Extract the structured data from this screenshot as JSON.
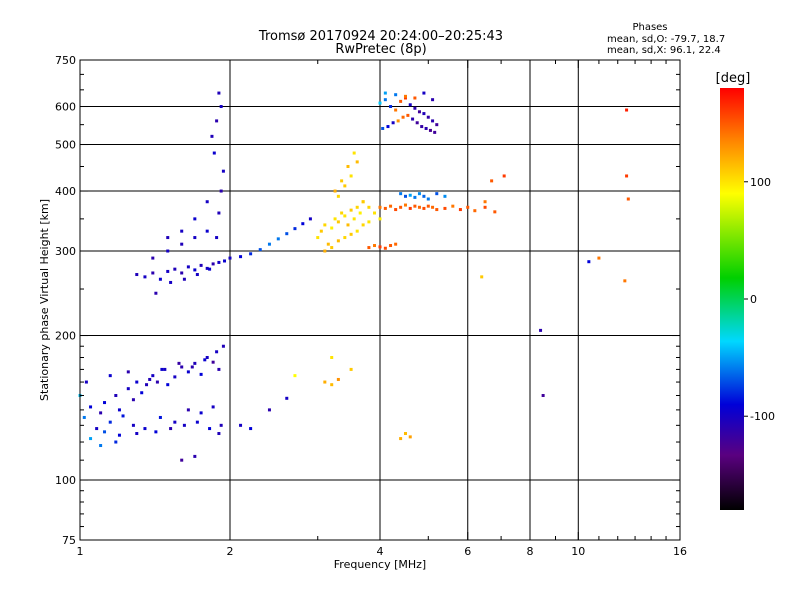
{
  "chart_data": {
    "type": "scatter",
    "title": "Tromsø 20170924 20:24:00–20:25:43",
    "subtitle": "RwPretec (8p)",
    "stats": {
      "title": "Phases",
      "line1": "mean, sd,O: -79.7, 18.7",
      "line2": "mean, sd,X:  96.1, 22.4"
    },
    "xlabel": "Frequency [MHz]",
    "ylabel": "Stationary phase Virtual Height [km]",
    "x_scale": "log",
    "y_scale": "log",
    "xlim": [
      1,
      16
    ],
    "ylim": [
      75,
      750
    ],
    "x_ticks": [
      1,
      2,
      4,
      6,
      8,
      10,
      16
    ],
    "y_ticks": [
      75,
      100,
      200,
      300,
      400,
      500,
      600,
      750
    ],
    "x_grid": [
      2,
      4,
      6,
      8,
      10
    ],
    "y_grid": [
      100,
      200,
      300,
      400,
      500,
      600
    ],
    "grid": true,
    "colorbar": {
      "label": "[deg]",
      "range": [
        -180,
        180
      ],
      "ticks": [
        100,
        0,
        -100
      ]
    },
    "series": [
      {
        "x": [
          1.0,
          1.02,
          1.05,
          1.08,
          1.1,
          1.12,
          1.15,
          1.18,
          1.2,
          1.22,
          1.25,
          1.28,
          1.3,
          1.33,
          1.36,
          1.4,
          1.43,
          1.46,
          1.5,
          1.55,
          1.6,
          1.65,
          1.7,
          1.75,
          1.8,
          1.85,
          1.9,
          1.05,
          1.12,
          1.2,
          1.28,
          1.35,
          1.45,
          1.55,
          1.65,
          1.75,
          1.85,
          1.92,
          1.1,
          1.18,
          1.3,
          1.42,
          1.52,
          1.62,
          1.72,
          1.82,
          1.9,
          1.03,
          1.15,
          1.25,
          1.38,
          1.48,
          1.58,
          1.68,
          1.78,
          1.88,
          1.94
        ],
        "y": [
          150,
          135,
          142,
          128,
          138,
          145,
          132,
          150,
          140,
          136,
          155,
          147,
          160,
          152,
          158,
          165,
          160,
          170,
          158,
          164,
          172,
          168,
          175,
          166,
          180,
          176,
          170,
          122,
          126,
          124,
          130,
          128,
          135,
          132,
          140,
          138,
          142,
          130,
          118,
          120,
          125,
          126,
          128,
          130,
          132,
          128,
          125,
          160,
          165,
          168,
          162,
          170,
          175,
          172,
          178,
          185,
          190
        ],
        "phase": [
          -40,
          -60,
          -90,
          -100,
          -110,
          -90,
          -80,
          -105,
          -95,
          -85,
          -100,
          -110,
          -95,
          -90,
          -105,
          -100,
          -110,
          -95,
          -90,
          -100,
          -110,
          -95,
          -105,
          -90,
          -100,
          -120,
          -110,
          -50,
          -70,
          -90,
          -100,
          -95,
          -85,
          -100,
          -110,
          -95,
          -100,
          -105,
          -60,
          -80,
          -100,
          -90,
          -110,
          -100,
          -95,
          -90,
          -105,
          -100,
          -95,
          -110,
          -105,
          -100,
          -115,
          -110,
          -95,
          -100,
          -105
        ]
      },
      {
        "x": [
          1.3,
          1.35,
          1.4,
          1.45,
          1.5,
          1.55,
          1.6,
          1.65,
          1.7,
          1.75,
          1.8,
          1.85,
          1.9,
          1.95,
          2.0,
          2.1,
          2.2,
          2.3,
          2.4,
          2.5,
          2.6,
          2.7,
          2.8,
          2.9,
          1.4,
          1.5,
          1.6,
          1.7,
          1.8,
          1.42,
          1.52,
          1.62,
          1.72,
          1.82,
          1.88,
          1.9,
          1.92,
          1.94,
          1.86,
          1.84,
          1.88,
          1.92,
          1.9,
          1.8,
          1.7,
          1.6,
          1.5
        ],
        "y": [
          268,
          265,
          270,
          262,
          272,
          275,
          270,
          278,
          274,
          280,
          276,
          282,
          284,
          286,
          290,
          292,
          296,
          302,
          310,
          318,
          326,
          334,
          342,
          350,
          290,
          300,
          310,
          320,
          330,
          245,
          258,
          262,
          268,
          275,
          320,
          360,
          400,
          440,
          480,
          520,
          560,
          600,
          640,
          380,
          350,
          330,
          320
        ],
        "phase": [
          -105,
          -100,
          -110,
          -95,
          -100,
          -105,
          -110,
          -100,
          -95,
          -105,
          -100,
          -110,
          -100,
          -95,
          -100,
          -90,
          -80,
          -70,
          -60,
          -60,
          -70,
          -80,
          -90,
          -100,
          -110,
          -100,
          -105,
          -100,
          -95,
          -110,
          -100,
          -105,
          -100,
          -95,
          -100,
          -105,
          -110,
          -100,
          -95,
          -105,
          -110,
          -100,
          -105,
          -100,
          -95,
          -100,
          -105
        ]
      },
      {
        "x": [
          3.0,
          3.05,
          3.1,
          3.15,
          3.2,
          3.25,
          3.3,
          3.35,
          3.4,
          3.45,
          3.5,
          3.55,
          3.6,
          3.65,
          3.7,
          3.1,
          3.2,
          3.3,
          3.4,
          3.5,
          3.6,
          3.7,
          3.8,
          3.25,
          3.35,
          3.45,
          3.55,
          3.3,
          3.4,
          3.5,
          3.6,
          3.7,
          3.8,
          3.9,
          4.0
        ],
        "y": [
          320,
          330,
          340,
          310,
          335,
          350,
          345,
          360,
          355,
          340,
          365,
          350,
          370,
          360,
          380,
          300,
          305,
          315,
          320,
          325,
          330,
          340,
          345,
          400,
          420,
          450,
          480,
          390,
          410,
          430,
          460,
          380,
          370,
          360,
          350
        ],
        "phase": [
          100,
          110,
          105,
          115,
          95,
          100,
          110,
          105,
          100,
          115,
          110,
          100,
          105,
          95,
          100,
          120,
          110,
          115,
          105,
          110,
          100,
          105,
          100,
          120,
          110,
          115,
          100,
          105,
          110,
          100,
          115,
          110,
          105,
          100,
          95
        ]
      },
      {
        "x": [
          4.0,
          4.1,
          4.2,
          4.3,
          4.4,
          4.5,
          4.6,
          4.7,
          4.8,
          4.9,
          5.0,
          5.1,
          5.2,
          5.4,
          5.6,
          5.8,
          6.0,
          6.2,
          6.5,
          6.8,
          3.8,
          3.9,
          4.0,
          4.1,
          4.2,
          4.3,
          4.4,
          4.5,
          4.6,
          4.7,
          4.8,
          4.9,
          5.0,
          5.2,
          5.4
        ],
        "y": [
          370,
          368,
          372,
          366,
          370,
          374,
          368,
          372,
          370,
          368,
          372,
          370,
          366,
          368,
          372,
          366,
          370,
          364,
          370,
          362,
          305,
          308,
          306,
          304,
          308,
          310,
          395,
          390,
          392,
          388,
          395,
          390,
          385,
          395,
          390
        ],
        "phase": [
          140,
          150,
          145,
          155,
          150,
          140,
          160,
          150,
          145,
          155,
          150,
          145,
          150,
          155,
          140,
          160,
          150,
          145,
          155,
          150,
          150,
          140,
          160,
          155,
          150,
          145,
          -60,
          -70,
          -50,
          -60,
          -55,
          -65,
          -60,
          -70,
          -55
        ]
      },
      {
        "x": [
          4.0,
          4.1,
          4.2,
          4.3,
          4.4,
          4.5,
          4.6,
          4.7,
          4.8,
          4.9,
          5.0,
          5.1,
          5.2,
          4.05,
          4.15,
          4.25,
          4.35,
          4.45,
          4.55,
          4.65,
          4.75,
          4.85,
          4.95,
          5.05,
          5.15,
          4.1,
          4.3,
          4.5,
          4.7,
          4.9,
          5.1
        ],
        "y": [
          610,
          620,
          600,
          590,
          615,
          625,
          605,
          595,
          585,
          580,
          570,
          560,
          550,
          540,
          545,
          555,
          560,
          570,
          575,
          565,
          555,
          545,
          540,
          535,
          530,
          640,
          635,
          630,
          625,
          640,
          620
        ],
        "phase": [
          -40,
          -60,
          -80,
          140,
          150,
          160,
          -100,
          -110,
          -120,
          -105,
          -115,
          -110,
          -120,
          -70,
          -90,
          -100,
          130,
          145,
          150,
          -110,
          -120,
          -115,
          -110,
          -125,
          -120,
          -50,
          -60,
          140,
          150,
          -100,
          -110
        ]
      },
      {
        "x": [
          3.1,
          3.2,
          3.3,
          3.5,
          4.4,
          4.5,
          4.6,
          6.4,
          8.4,
          8.5,
          10.5,
          11.0,
          12.5,
          12.5,
          12.6,
          12.4,
          7.1,
          6.7,
          6.5,
          3.2,
          2.7,
          2.6,
          2.4,
          2.2,
          2.1,
          1.6,
          1.7
        ],
        "y": [
          160,
          158,
          162,
          170,
          122,
          125,
          123,
          265,
          205,
          150,
          285,
          290,
          590,
          430,
          385,
          260,
          430,
          420,
          380,
          180,
          165,
          148,
          140,
          128,
          130,
          110,
          112
        ],
        "phase": [
          120,
          115,
          130,
          110,
          120,
          115,
          125,
          110,
          -110,
          -120,
          -90,
          140,
          170,
          160,
          150,
          140,
          160,
          150,
          140,
          100,
          90,
          -100,
          -110,
          -90,
          -100,
          -120,
          -110
        ]
      }
    ]
  }
}
